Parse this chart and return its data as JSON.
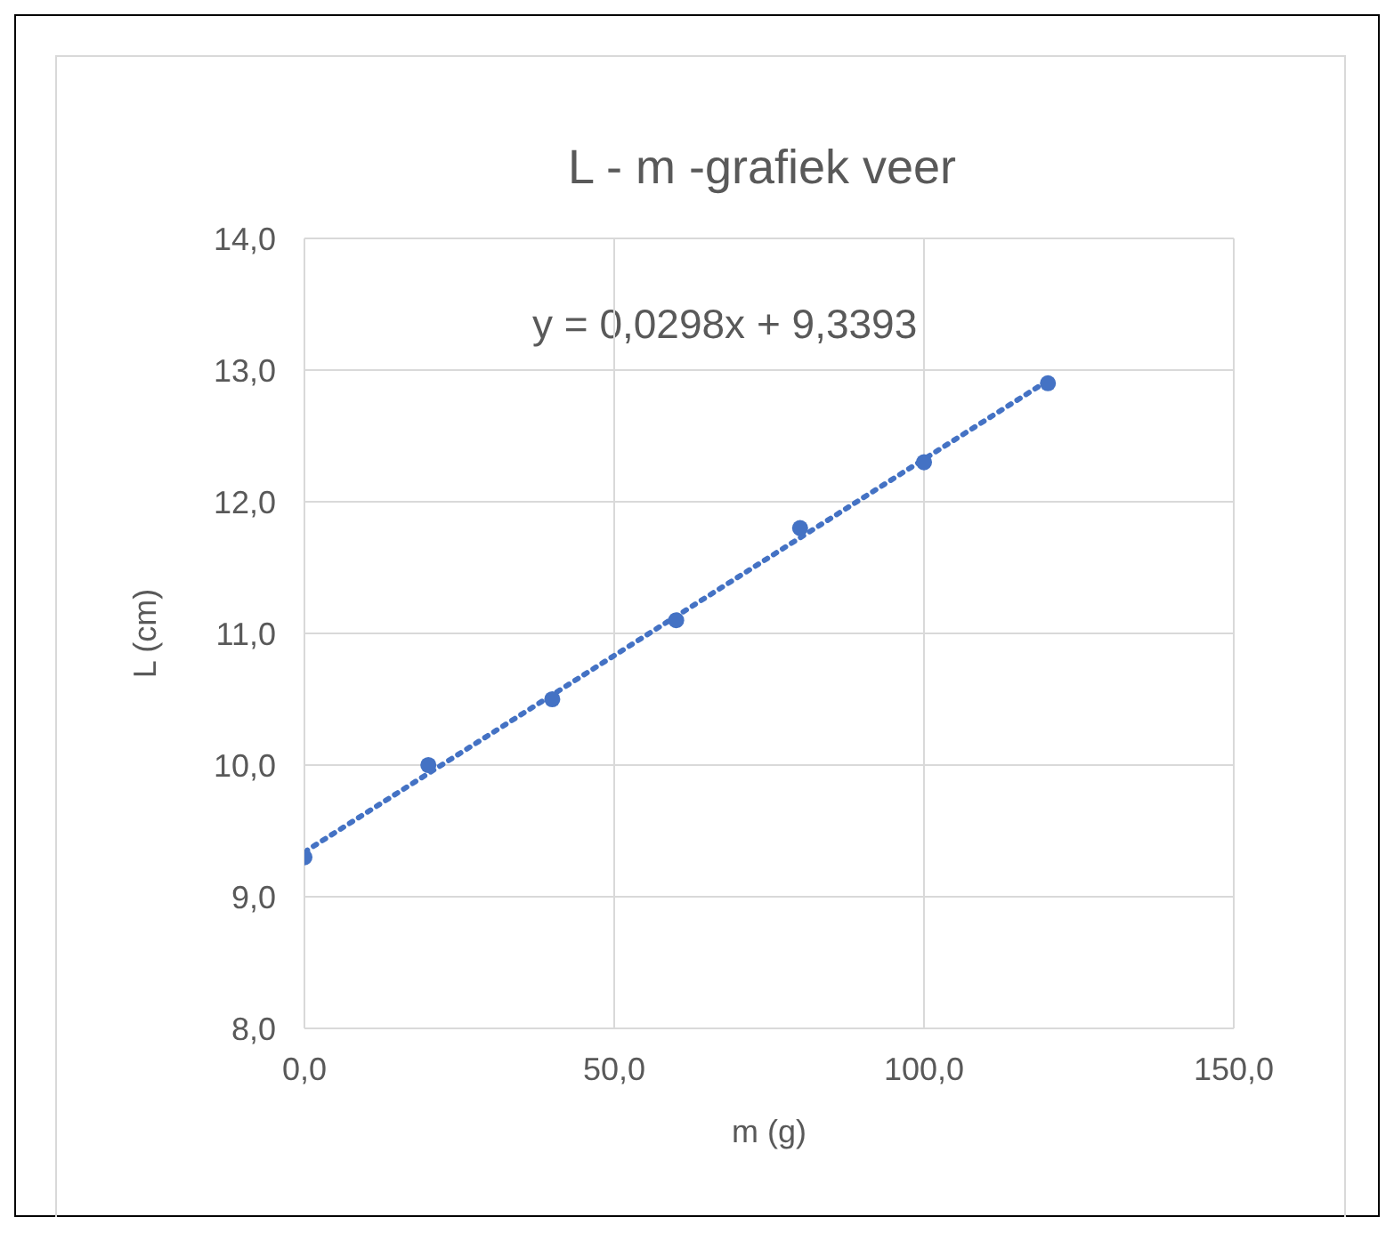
{
  "chart_data": {
    "type": "scatter",
    "title": "L - m -grafiek veer",
    "xlabel": "m (g)",
    "ylabel": "L (cm)",
    "annotations": [
      "y = 0,0298x + 9,3393"
    ],
    "series": [
      {
        "color": "#4472c4",
        "marker": "circle",
        "x": [
          0,
          20,
          40,
          60,
          80,
          100,
          120
        ],
        "values": [
          9.3,
          10.0,
          10.5,
          11.1,
          11.8,
          12.3,
          12.9
        ]
      },
      {
        "type": "line",
        "color": "#4472c4",
        "marker": "none",
        "line_style": "dotted",
        "x": [
          0,
          120
        ],
        "values": [
          9.34,
          12.92
        ]
      }
    ],
    "xlim": [
      0,
      150
    ],
    "xticks": [
      {
        "value": 0,
        "label": "0,0"
      },
      {
        "value": 50,
        "label": "50,0"
      },
      {
        "value": 100,
        "label": "100,0"
      },
      {
        "value": 150,
        "label": "150,0"
      }
    ],
    "ylim": [
      8,
      14
    ],
    "yticks": [
      {
        "value": 8,
        "label": "8,0"
      },
      {
        "value": 9,
        "label": "9,0"
      },
      {
        "value": 10,
        "label": "10,0"
      },
      {
        "value": 11,
        "label": "11,0"
      },
      {
        "value": 12,
        "label": "12,0"
      },
      {
        "value": 13,
        "label": "13,0"
      },
      {
        "value": 14,
        "label": "14,0"
      }
    ],
    "grid": true
  }
}
